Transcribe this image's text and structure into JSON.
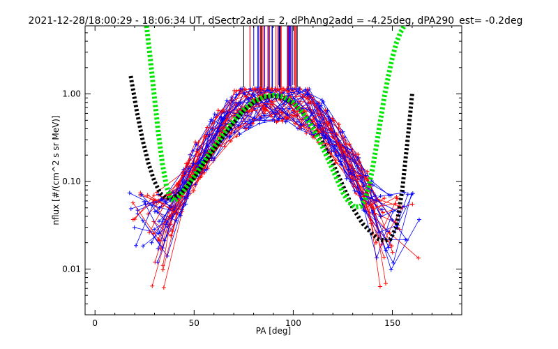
{
  "chart_data": {
    "type": "line",
    "title": "2021-12-28/18:00:29 - 18:06:34 UT, dSectr2add = 2, dPhAng2add = -4.25deg, dPA290_est=  -0.2deg",
    "xlabel": "PA [deg]",
    "ylabel": "nflux [#/(cm^2 s sr MeV)]",
    "xlim": [
      -5,
      185
    ],
    "ylim": [
      0.003,
      6.0
    ],
    "yscale": "log",
    "xticks": [
      0,
      50,
      100,
      150
    ],
    "xtick_labels": [
      "0",
      "50",
      "100",
      "150"
    ],
    "yticks": [
      0.01,
      0.1,
      1.0
    ],
    "ytick_labels": [
      "0.01",
      "0.10",
      "1.00"
    ],
    "grid": false,
    "legend": "none",
    "series": [
      {
        "color": "#000000",
        "style": "thick-dashed",
        "x": [
          18,
          21,
          24,
          27,
          30,
          33,
          36,
          40,
          45,
          50,
          55,
          60,
          65,
          70,
          75,
          80,
          85,
          90,
          95,
          100,
          105,
          110,
          115,
          120,
          125,
          130,
          135,
          140,
          143,
          146,
          149,
          152,
          155,
          158,
          160
        ],
        "y": [
          1.6,
          0.65,
          0.3,
          0.16,
          0.1,
          0.073,
          0.064,
          0.066,
          0.08,
          0.11,
          0.16,
          0.23,
          0.33,
          0.47,
          0.64,
          0.8,
          0.91,
          0.95,
          0.9,
          0.78,
          0.6,
          0.42,
          0.27,
          0.16,
          0.09,
          0.05,
          0.033,
          0.025,
          0.022,
          0.021,
          0.022,
          0.03,
          0.08,
          0.35,
          1.0
        ]
      },
      {
        "color": "#00e600",
        "style": "thick-dashed",
        "x": [
          26,
          28,
          30,
          32,
          34,
          36,
          38,
          40,
          42,
          45,
          50,
          55,
          60,
          65,
          70,
          75,
          80,
          85,
          90,
          95,
          100,
          105,
          110,
          115,
          120,
          125,
          128,
          131,
          134,
          136,
          138,
          140,
          142,
          144,
          146,
          148,
          150,
          152,
          154,
          156
        ],
        "y": [
          6.0,
          2.4,
          0.9,
          0.35,
          0.16,
          0.09,
          0.065,
          0.06,
          0.065,
          0.08,
          0.115,
          0.17,
          0.25,
          0.36,
          0.5,
          0.66,
          0.82,
          0.93,
          0.97,
          0.93,
          0.8,
          0.6,
          0.4,
          0.24,
          0.135,
          0.075,
          0.058,
          0.051,
          0.052,
          0.06,
          0.085,
          0.14,
          0.26,
          0.5,
          0.95,
          1.6,
          2.6,
          3.8,
          5.0,
          6.0
        ]
      }
    ]
  }
}
